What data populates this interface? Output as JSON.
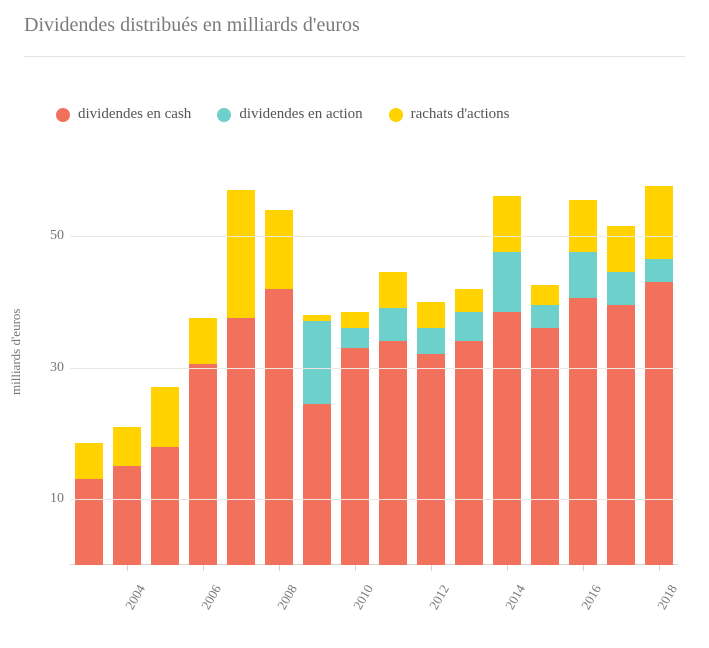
{
  "title": "Dividendes distribués en milliards d'euros",
  "ylabel": "milliards d'euros",
  "chart": {
    "type": "stacked-bar",
    "background_color": "#ffffff",
    "grid_color": "#ece8e1",
    "axis_color": "#d8d4cc",
    "text_color": "#777777",
    "title_color": "#7a7a7a",
    "title_fontsize": 20,
    "label_fontsize": 13,
    "ylim": [
      0,
      60
    ],
    "yticks": [
      10,
      30,
      50
    ],
    "bar_width_ratio": 0.72,
    "series": [
      {
        "key": "cash",
        "label": "dividendes en cash",
        "color": "#f2715c"
      },
      {
        "key": "action",
        "label": "dividendes en action",
        "color": "#6ed0cb"
      },
      {
        "key": "rachats",
        "label": "rachats d'actions",
        "color": "#ffd200"
      }
    ],
    "categories": [
      "2003",
      "2004",
      "2005",
      "2006",
      "2007",
      "2008",
      "2009",
      "2010",
      "2011",
      "2012",
      "2013",
      "2014",
      "2015",
      "2016",
      "2017",
      "2018"
    ],
    "x_tick_labels": [
      "2004",
      "2006",
      "2008",
      "2010",
      "2012",
      "2014",
      "2016",
      "2018"
    ],
    "data": [
      {
        "year": "2003",
        "cash": 13.0,
        "action": 0.0,
        "rachats": 5.5
      },
      {
        "year": "2004",
        "cash": 15.0,
        "action": 0.0,
        "rachats": 6.0
      },
      {
        "year": "2005",
        "cash": 18.0,
        "action": 0.0,
        "rachats": 9.0
      },
      {
        "year": "2006",
        "cash": 30.5,
        "action": 0.0,
        "rachats": 7.0
      },
      {
        "year": "2007",
        "cash": 37.5,
        "action": 0.0,
        "rachats": 19.5
      },
      {
        "year": "2008",
        "cash": 42.0,
        "action": 0.0,
        "rachats": 12.0
      },
      {
        "year": "2009",
        "cash": 24.5,
        "action": 12.5,
        "rachats": 1.0
      },
      {
        "year": "2010",
        "cash": 33.0,
        "action": 3.0,
        "rachats": 2.5
      },
      {
        "year": "2011",
        "cash": 34.0,
        "action": 5.0,
        "rachats": 5.5
      },
      {
        "year": "2012",
        "cash": 32.0,
        "action": 4.0,
        "rachats": 4.0
      },
      {
        "year": "2013",
        "cash": 34.0,
        "action": 4.5,
        "rachats": 3.5
      },
      {
        "year": "2014",
        "cash": 38.5,
        "action": 9.0,
        "rachats": 8.5
      },
      {
        "year": "2015",
        "cass": 0,
        "cash": 36.0,
        "action": 3.5,
        "rachats": 3.0
      },
      {
        "year": "2016",
        "cash": 40.5,
        "action": 7.0,
        "rachats": 8.0
      },
      {
        "year": "2017",
        "cash": 39.5,
        "action": 5.0,
        "rachats": 7.0
      },
      {
        "year": "2018",
        "cash": 43.0,
        "action": 3.5,
        "rachats": 11.0
      }
    ]
  }
}
